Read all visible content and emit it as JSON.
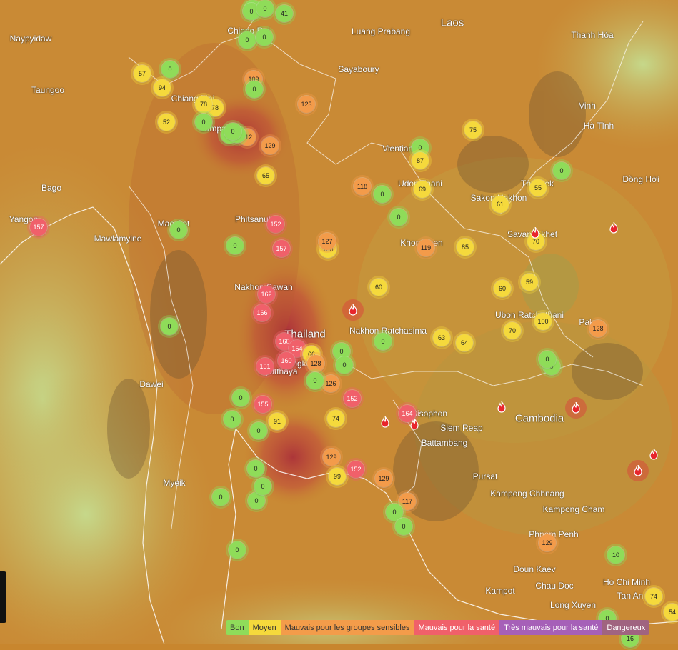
{
  "map": {
    "country_labels": [
      {
        "text": "Laos",
        "key": "laos"
      },
      {
        "text": "Thailand",
        "key": "thailand"
      },
      {
        "text": "Cambodia",
        "key": "cambodia"
      }
    ],
    "city_labels": [
      "Naypyidaw",
      "Taungoo",
      "Bago",
      "Mawlamyine",
      "Dawei",
      "Myeik",
      "Chiang Rai",
      "Luang Prabang",
      "Sayaboury",
      "Thanh Hóa",
      "Vinh",
      "Hà Tĩnh",
      "Đồng Hới",
      "Vientiane",
      "Udon Thani",
      "Sakon Nakhon",
      "Thakhek",
      "Savannakhet",
      "Khon Kaen",
      "Nakhon Sawan",
      "Phitsanulok",
      "Nakhon Ratchasima",
      "Ubon Ratchathani",
      "Pakse",
      "Sisophon",
      "Siem Reap",
      "Battambang",
      "Pursat",
      "Kampong Chhnang",
      "Kampong Cham",
      "Phnom Penh",
      "Doun Kaev",
      "Chau Doc",
      "Kampot",
      "Long Xuyen",
      "Ho Chi Minh",
      "Tan An",
      "Lampang",
      "Chiang Mai",
      "Ayutthaya",
      "Bangkok",
      "Yangon",
      "Mae Sot"
    ],
    "aqi_markers": [
      "0",
      "0",
      "0",
      "41",
      "0",
      "0",
      "57",
      "0",
      "94",
      "78",
      "109",
      "0",
      "78",
      "52",
      "123",
      "0",
      "112",
      "11",
      "11",
      "0",
      "129",
      "75",
      "0",
      "87",
      "0",
      "65",
      "69",
      "55",
      "118",
      "0",
      "61",
      "0",
      "0",
      "152",
      "0",
      "157",
      "100",
      "127",
      "119",
      "85",
      "70",
      "60",
      "60",
      "59",
      "162",
      "166",
      "0",
      "157",
      "160",
      "154",
      "66",
      "128",
      "0",
      "0",
      "151",
      "160",
      "0",
      "126",
      "0",
      "155",
      "152",
      "164",
      "0",
      "91",
      "0",
      "0",
      "0",
      "74",
      "129",
      "99",
      "0",
      "152",
      "129",
      "117",
      "0",
      "0",
      "0",
      "129",
      "10",
      "74",
      "54",
      "16",
      "0",
      "63",
      "64",
      "70",
      "100",
      "128",
      "0",
      "0",
      "0",
      "0"
    ],
    "fires": 11
  },
  "legend": [
    {
      "label": "Bon",
      "color": "#8fdc5a"
    },
    {
      "label": "Moyen",
      "color": "#f5d93c"
    },
    {
      "label": "Mauvais pour les groupes sensibles",
      "color": "#f39c4a"
    },
    {
      "label": "Mauvais pour la santé",
      "color": "#f0606a"
    },
    {
      "label": "Très mauvais pour la santé",
      "color": "#a660b8"
    },
    {
      "label": "Dangereux",
      "color": "#a06480"
    }
  ],
  "colors": {
    "good": "#8fdc5a",
    "moderate": "#f5d93c",
    "sensitive": "#f39c4a",
    "unhealthy": "#f0606a"
  }
}
